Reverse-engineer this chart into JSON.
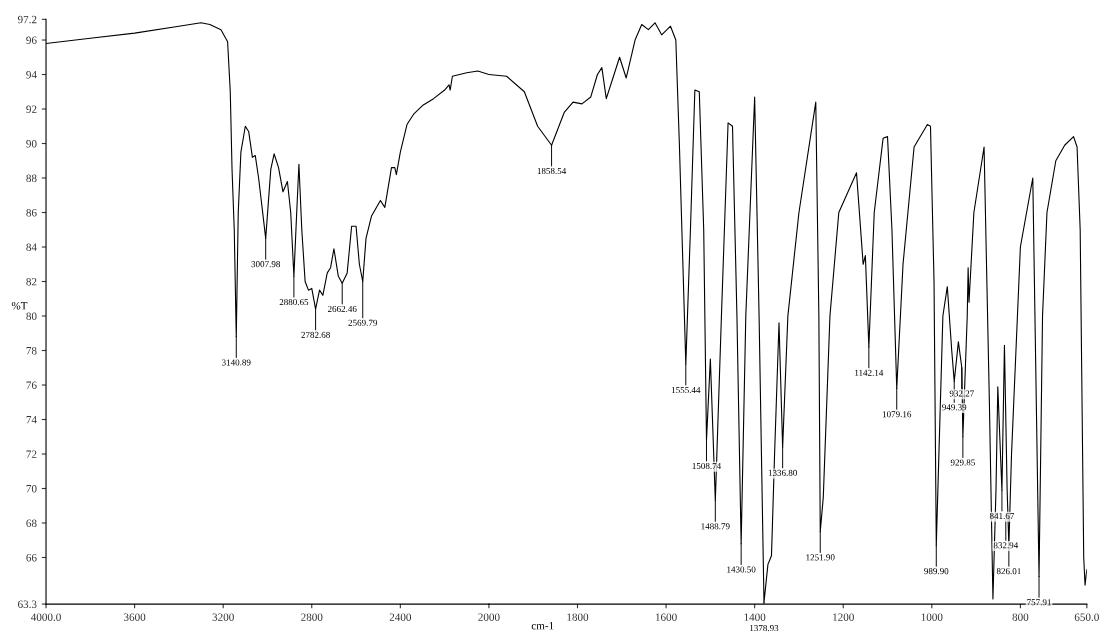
{
  "chart_data": [
    {
      "type": "line",
      "ylabel": "%T",
      "xlim": [
        4000,
        2000
      ],
      "xticks": [
        {
          "value": 4000,
          "label": "4000.0"
        },
        3600,
        3200,
        2800,
        2400,
        2000
      ],
      "ylim": [
        63.3,
        97.2
      ],
      "yticks": [
        63.3,
        66,
        68,
        70,
        72,
        74,
        76,
        78,
        80,
        82,
        84,
        86,
        88,
        90,
        92,
        94,
        96,
        97.2
      ],
      "grid": false,
      "marker": "none",
      "line_style": "solid",
      "series": [
        {
          "color": "#000000",
          "x": [
            4000,
            3800,
            3600,
            3400,
            3300,
            3260,
            3210,
            3180,
            3168,
            3160,
            3150,
            3140.89,
            3132,
            3120,
            3100,
            3085,
            3068,
            3055,
            3040,
            3007.98,
            2985,
            2970,
            2950,
            2930,
            2910,
            2895,
            2880.65,
            2868,
            2858,
            2845,
            2830,
            2815,
            2800,
            2782.68,
            2765,
            2750,
            2730,
            2715,
            2700,
            2680,
            2662.46,
            2640,
            2620,
            2600,
            2585,
            2569.79,
            2555,
            2530,
            2490,
            2470,
            2440,
            2425,
            2418,
            2400,
            2370,
            2340,
            2300,
            2250,
            2200,
            2180,
            2175,
            2165,
            2100,
            2050,
            2000
          ],
          "values": [
            95.8,
            96.1,
            96.4,
            96.8,
            97.0,
            96.9,
            96.6,
            95.9,
            93.0,
            88.5,
            85.0,
            78.8,
            86.0,
            89.5,
            91.0,
            90.7,
            89.2,
            89.3,
            88.0,
            84.5,
            88.5,
            89.4,
            88.6,
            87.2,
            87.8,
            86.0,
            82.3,
            86.0,
            88.8,
            85.0,
            82.0,
            81.5,
            81.6,
            80.4,
            81.5,
            81.2,
            82.5,
            82.8,
            83.9,
            82.3,
            81.9,
            82.5,
            85.2,
            85.2,
            83.0,
            82.0,
            84.5,
            85.8,
            86.7,
            86.3,
            88.6,
            88.6,
            88.2,
            89.5,
            91.1,
            91.7,
            92.2,
            92.6,
            93.1,
            93.4,
            93.1,
            93.9,
            94.1,
            94.2,
            94.0
          ]
        }
      ],
      "annotations": [
        {
          "text": "3140.89",
          "x": 3140.89,
          "y": 78.8
        },
        {
          "text": "3007.98",
          "x": 3007.98,
          "y": 84.5
        },
        {
          "text": "2880.65",
          "x": 2880.65,
          "y": 82.3
        },
        {
          "text": "2782.68",
          "x": 2782.68,
          "y": 80.4
        },
        {
          "text": "2662.46",
          "x": 2662.46,
          "y": 81.9
        },
        {
          "text": "2569.79",
          "x": 2569.79,
          "y": 82.0
        }
      ]
    },
    {
      "type": "line",
      "xlabel": "cm-1",
      "tick_labels": "x",
      "xlim": [
        2000,
        650
      ],
      "xticks": [
        1800,
        1600,
        1400,
        1200,
        1000,
        800,
        {
          "value": 650,
          "label": "650.0"
        }
      ],
      "ylim": [
        63.3,
        97.2
      ],
      "grid": false,
      "marker": "none",
      "line_style": "solid",
      "series": [
        {
          "color": "#000000",
          "x": [
            2000,
            1960,
            1920,
            1890,
            1858.54,
            1830,
            1810,
            1790,
            1770,
            1755,
            1745,
            1735,
            1720,
            1705,
            1690,
            1670,
            1655,
            1640,
            1625,
            1610,
            1590,
            1578,
            1570,
            1555.44,
            1545,
            1535,
            1525,
            1515,
            1508.74,
            1500,
            1488.79,
            1475,
            1460,
            1450,
            1440,
            1430.5,
            1420,
            1400,
            1390,
            1378.93,
            1370,
            1362,
            1355,
            1345,
            1336.8,
            1325,
            1300,
            1262,
            1255,
            1251.9,
            1245,
            1230,
            1210,
            1170,
            1155,
            1150,
            1142.14,
            1130,
            1110,
            1100,
            1090,
            1079.16,
            1065,
            1040,
            1010,
            1003,
            995,
            989.9,
            975,
            965,
            955,
            949.39,
            940,
            932.27,
            929.85,
            920,
            918,
            916,
            905,
            882,
            870,
            862,
            855,
            851,
            841.67,
            836,
            830,
            826.01,
            820,
            800,
            772,
            757.91,
            750,
            740,
            720,
            700,
            680,
            672,
            665,
            657,
            654,
            650
          ],
          "values": [
            94.0,
            93.9,
            93.0,
            91.0,
            89.9,
            91.8,
            92.4,
            92.3,
            92.7,
            94.0,
            94.4,
            92.6,
            93.8,
            95.0,
            93.8,
            96.0,
            96.9,
            96.6,
            97.0,
            96.3,
            96.8,
            96.0,
            90.0,
            77.2,
            85.0,
            93.1,
            93.0,
            85.0,
            72.8,
            77.5,
            69.3,
            80.0,
            91.2,
            91.0,
            80.0,
            66.8,
            80.0,
            92.7,
            80.0,
            63.4,
            65.6,
            66.1,
            72.0,
            79.6,
            72.4,
            80.0,
            86.0,
            92.4,
            80.0,
            67.5,
            69.5,
            80.0,
            86.0,
            88.3,
            83.0,
            83.5,
            78.2,
            86.0,
            90.3,
            90.4,
            85.0,
            75.8,
            83.0,
            89.8,
            91.1,
            91.0,
            82.0,
            66.7,
            80.0,
            81.7,
            78.0,
            76.2,
            78.5,
            77.0,
            73.0,
            80.0,
            82.8,
            80.8,
            86.0,
            89.8,
            75.0,
            63.6,
            70.0,
            75.9,
            69.9,
            78.3,
            70.0,
            66.7,
            72.0,
            84.0,
            88.0,
            64.9,
            80.0,
            86.0,
            89.0,
            89.9,
            90.4,
            89.8,
            85.0,
            66.0,
            64.4,
            65.3
          ]
        }
      ],
      "annotations": [
        {
          "text": "1858.54",
          "x": 1858.54,
          "y": 89.9
        },
        {
          "text": "1555.44",
          "x": 1555.44,
          "y": 77.2
        },
        {
          "text": "1508.74",
          "x": 1508.74,
          "y": 72.8
        },
        {
          "text": "1488.79",
          "x": 1488.79,
          "y": 69.3
        },
        {
          "text": "1430.50",
          "x": 1430.5,
          "y": 66.8
        },
        {
          "text": "1378.93",
          "x": 1378.93,
          "y": 63.4
        },
        {
          "text": "1336.80",
          "x": 1336.8,
          "y": 72.4
        },
        {
          "text": "1251.90",
          "x": 1251.9,
          "y": 67.5
        },
        {
          "text": "1142.14",
          "x": 1142.14,
          "y": 78.2
        },
        {
          "text": "1079.16",
          "x": 1079.16,
          "y": 75.8
        },
        {
          "text": "989.90",
          "x": 989.9,
          "y": 66.7
        },
        {
          "text": "949.39",
          "x": 949.39,
          "y": 76.2
        },
        {
          "text": "932.27",
          "x": 932.27,
          "y": 77.0
        },
        {
          "text": "929.85",
          "x": 929.85,
          "y": 73.0
        },
        {
          "text": "841.67",
          "x": 841.67,
          "y": 69.9
        },
        {
          "text": "832.94",
          "x": 832.94,
          "y": 68.2
        },
        {
          "text": "826.01",
          "x": 826.01,
          "y": 66.7
        },
        {
          "text": "757.91",
          "x": 757.91,
          "y": 64.9
        }
      ]
    }
  ]
}
